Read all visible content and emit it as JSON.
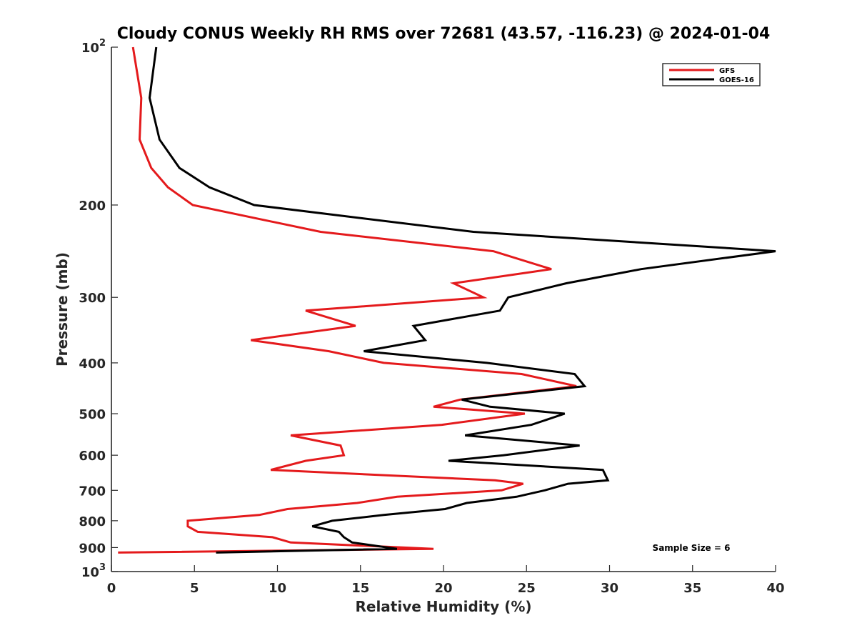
{
  "chart_data": {
    "type": "line",
    "title": "Cloudy CONUS Weekly RH RMS over 72681 (43.57, -116.23) @ 2024-01-04",
    "xlabel": "Relative Humidity (%)",
    "ylabel": "Pressure (mb)",
    "xlim": [
      0,
      40
    ],
    "ylim": [
      100,
      1000
    ],
    "y_scale": "log",
    "y_reversed": true,
    "grid": false,
    "legend_position": "top-right",
    "x_ticks": [
      0,
      5,
      10,
      15,
      20,
      25,
      30,
      35,
      40
    ],
    "x_tick_labels": [
      "0",
      "5",
      "10",
      "15",
      "20",
      "25",
      "30",
      "35",
      "40"
    ],
    "y_ticks": [
      200,
      300,
      400,
      500,
      600,
      700,
      800,
      900
    ],
    "y_tick_labels": [
      "200",
      "300",
      "400",
      "500",
      "600",
      "700",
      "800",
      "900"
    ],
    "y_decade_ticks": [
      {
        "value": 100,
        "base": "10",
        "exp": "2"
      },
      {
        "value": 1000,
        "base": "10",
        "exp": "3"
      }
    ],
    "annotation": "Sample Size = 6",
    "series": [
      {
        "name": "GFS",
        "color": "#e41a1c",
        "points": [
          [
            1.3,
            100
          ],
          [
            1.8,
            125
          ],
          [
            1.7,
            150
          ],
          [
            2.4,
            170
          ],
          [
            3.4,
            185
          ],
          [
            4.9,
            200
          ],
          [
            12.6,
            225
          ],
          [
            23.0,
            245
          ],
          [
            26.5,
            265
          ],
          [
            20.6,
            282
          ],
          [
            22.4,
            300
          ],
          [
            11.7,
            318
          ],
          [
            14.7,
            340
          ],
          [
            8.4,
            362
          ],
          [
            13.1,
            380
          ],
          [
            16.4,
            400
          ],
          [
            24.7,
            420
          ],
          [
            28.0,
            443
          ],
          [
            21.0,
            470
          ],
          [
            19.4,
            485
          ],
          [
            24.9,
            500
          ],
          [
            19.9,
            525
          ],
          [
            10.8,
            550
          ],
          [
            13.8,
            575
          ],
          [
            14.0,
            600
          ],
          [
            11.7,
            615
          ],
          [
            9.6,
            640
          ],
          [
            23.1,
            670
          ],
          [
            24.8,
            680
          ],
          [
            23.5,
            700
          ],
          [
            17.2,
            720
          ],
          [
            14.8,
            740
          ],
          [
            10.6,
            760
          ],
          [
            8.9,
            780
          ],
          [
            4.6,
            800
          ],
          [
            4.6,
            820
          ],
          [
            5.2,
            840
          ],
          [
            9.7,
            860
          ],
          [
            10.8,
            880
          ],
          [
            19.4,
            905
          ],
          [
            0.4,
            920
          ]
        ]
      },
      {
        "name": "GOES-16",
        "color": "#000000",
        "points": [
          [
            2.7,
            100
          ],
          [
            2.3,
            125
          ],
          [
            2.9,
            150
          ],
          [
            4.1,
            170
          ],
          [
            5.9,
            185
          ],
          [
            8.6,
            200
          ],
          [
            21.8,
            225
          ],
          [
            40.0,
            245
          ],
          [
            31.9,
            265
          ],
          [
            27.4,
            282
          ],
          [
            23.9,
            300
          ],
          [
            23.4,
            318
          ],
          [
            18.2,
            340
          ],
          [
            18.9,
            362
          ],
          [
            15.2,
            380
          ],
          [
            22.6,
            400
          ],
          [
            27.9,
            420
          ],
          [
            28.5,
            443
          ],
          [
            21.1,
            470
          ],
          [
            22.8,
            485
          ],
          [
            27.3,
            500
          ],
          [
            25.3,
            525
          ],
          [
            21.3,
            550
          ],
          [
            28.2,
            575
          ],
          [
            23.6,
            600
          ],
          [
            20.3,
            615
          ],
          [
            29.6,
            640
          ],
          [
            29.9,
            670
          ],
          [
            27.5,
            680
          ],
          [
            26.1,
            700
          ],
          [
            24.4,
            720
          ],
          [
            21.4,
            740
          ],
          [
            20.1,
            760
          ],
          [
            16.4,
            780
          ],
          [
            13.3,
            800
          ],
          [
            12.1,
            820
          ],
          [
            13.7,
            840
          ],
          [
            14.0,
            860
          ],
          [
            14.5,
            880
          ],
          [
            17.2,
            905
          ],
          [
            6.3,
            920
          ]
        ]
      }
    ]
  }
}
